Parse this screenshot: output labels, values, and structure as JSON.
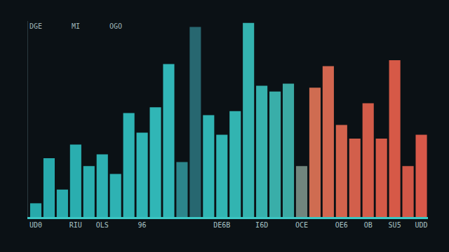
{
  "chart_data": {
    "type": "bar",
    "categories": [
      "UD0",
      null,
      null,
      "RIU",
      null,
      "OLS",
      null,
      null,
      "96",
      null,
      null,
      null,
      null,
      null,
      "DE6B",
      null,
      null,
      "I6D",
      null,
      null,
      "OCE",
      null,
      null,
      "OE6",
      null,
      "OB",
      null,
      "SU5",
      null,
      "UDD"
    ],
    "values": [
      7,
      30,
      14,
      37,
      26,
      32,
      22,
      53,
      43,
      56,
      78,
      28,
      97,
      52,
      42,
      54,
      99,
      67,
      64,
      68,
      26,
      66,
      77,
      47,
      40,
      58,
      40,
      80,
      26,
      42
    ],
    "colors": [
      "#2ab7b8",
      "#2bb8ba",
      "#2cbabb",
      "#2dbcbd",
      "#2ebdbe",
      "#30bfc0",
      "#31c0c1",
      "#32c2c2",
      "#33c3c3",
      "#34c4c4",
      "#35c5c5",
      "#2f8f96",
      "#2a6f78",
      "#34c3c2",
      "#35c3c1",
      "#36c2bf",
      "#38c1bd",
      "#3abfba",
      "#3dbcb6",
      "#40b8b1",
      "#7a8f86",
      "#e07457",
      "#e56e54",
      "#e46a52",
      "#e36650",
      "#e5634e",
      "#e6614d",
      "#e8604c",
      "#e25e4c",
      "#ea5f4e"
    ],
    "annotations": [
      "DGE",
      "MI",
      "OGO"
    ],
    "ylim": [
      0,
      100
    ],
    "grid": false,
    "tick_labels": "x"
  }
}
